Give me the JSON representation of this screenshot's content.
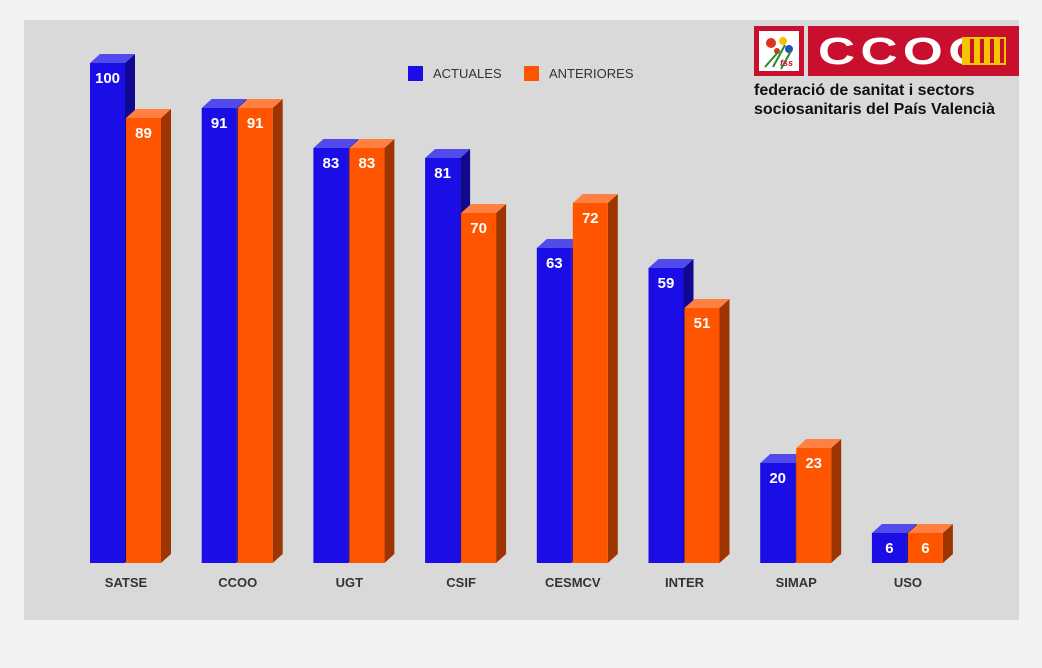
{
  "chart_data": {
    "type": "bar",
    "categories": [
      "SATSE",
      "CCOO",
      "UGT",
      "CSIF",
      "CESMCV",
      "INTER",
      "SIMAP",
      "USO"
    ],
    "series": [
      {
        "name": "ACTUALES",
        "values": [
          100,
          91,
          83,
          81,
          63,
          59,
          20,
          6
        ],
        "color": "#1a0de6"
      },
      {
        "name": "ANTERIORES",
        "values": [
          89,
          91,
          83,
          70,
          72,
          51,
          23,
          6
        ],
        "color": "#ff5500"
      }
    ],
    "ylim": [
      0,
      100
    ],
    "grid": false,
    "legend_position": "top-center",
    "style": "3d-bars"
  },
  "logo": {
    "wordmark": "CCOO",
    "badge": "fss",
    "line1": "federació de sanitat i sectors",
    "line2": "sociosanitaris del País Valencià",
    "brand_color": "#c8102e"
  }
}
